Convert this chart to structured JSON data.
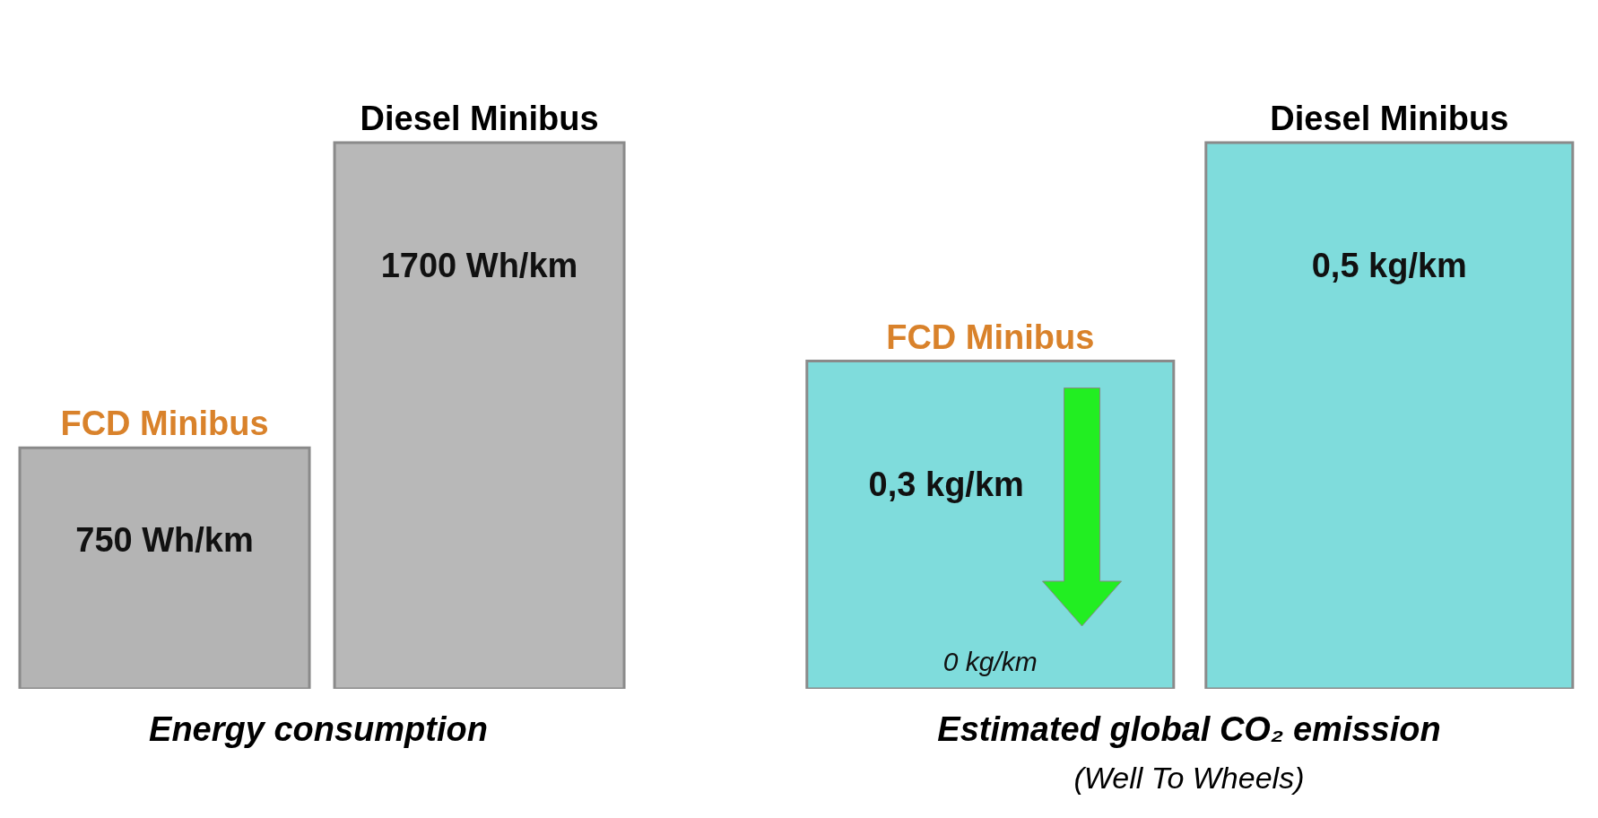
{
  "chart_data": [
    {
      "type": "bar",
      "xlabel": "Energy consumption",
      "categories": [
        "FCD Minibus",
        "Diesel Minibus"
      ],
      "values": [
        750,
        1700
      ],
      "value_labels": [
        "750 Wh/km",
        "1700 Wh/km"
      ],
      "colors": [
        "#b4b4b4",
        "#b8b8b8"
      ]
    },
    {
      "type": "bar",
      "xlabel": "Estimated global CO₂ emission",
      "subtitle": "(Well To Wheels)",
      "categories": [
        "FCD Minibus",
        "Diesel Minibus"
      ],
      "values": [
        0.3,
        0.5
      ],
      "value_labels": [
        "0,3 kg/km",
        "0,5 kg/km"
      ],
      "colors": [
        "#7fdcdc",
        "#7fdcdc"
      ],
      "annotations": [
        {
          "text": "0 kg/km",
          "x": "FCD Minibus",
          "y": 0
        }
      ]
    }
  ]
}
